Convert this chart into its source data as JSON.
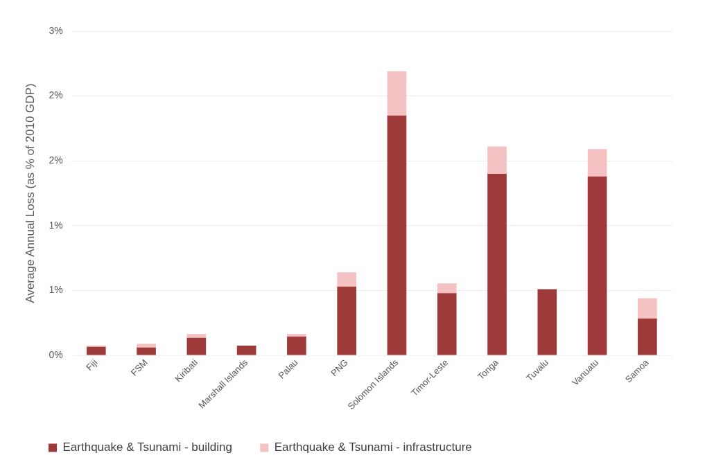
{
  "chart_data": {
    "type": "bar",
    "ylabel": "Average Annual Loss (as % of 2010 GDP)",
    "categories": [
      "Fiji",
      "FSM",
      "Kiribati",
      "Marshall Islands",
      "Palau",
      "PNG",
      "Solomon Islands",
      "Timor-Leste",
      "Tonga",
      "Tuvalu",
      "Vanuatu",
      "Samoa"
    ],
    "series": [
      {
        "name": "Earthquake & Tsunami - building",
        "color": "#9e3a3a",
        "values": [
          0.065,
          0.06,
          0.135,
          0.075,
          0.145,
          0.53,
          1.85,
          0.48,
          1.4,
          0.51,
          1.38,
          0.285
        ]
      },
      {
        "name": "Earthquake & Tsunami - infrastructure",
        "color": "#f4c2c2",
        "values": [
          0.01,
          0.03,
          0.03,
          0,
          0.02,
          0.11,
          0.34,
          0.075,
          0.21,
          0,
          0.21,
          0.155
        ]
      }
    ],
    "stacked": true,
    "ylim": [
      0,
      2.5
    ],
    "yticks": [
      {
        "value": 0,
        "label": "0%"
      },
      {
        "value": 0.5,
        "label": "1%"
      },
      {
        "value": 1,
        "label": "1%"
      },
      {
        "value": 1.5,
        "label": "2%"
      },
      {
        "value": 2,
        "label": "2%"
      },
      {
        "value": 2.5,
        "label": "3%"
      }
    ],
    "grid": "y",
    "legend": "bottom"
  }
}
